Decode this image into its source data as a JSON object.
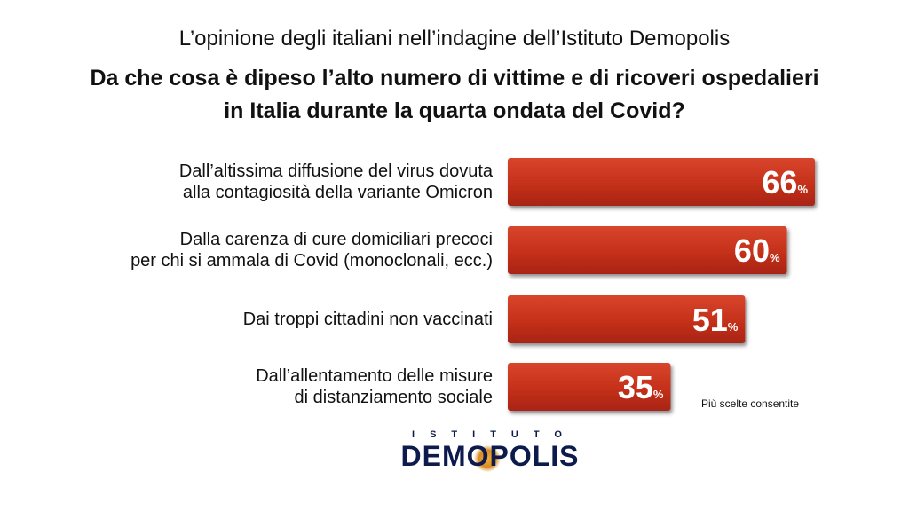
{
  "header": {
    "subtitle": "L’opinione degli italiani nell’indagine dell’Istituto Demopolis",
    "question_line1": "Da che cosa è dipeso l’alto numero di vittime e di ricoveri ospedalieri",
    "question_line2": "in Italia durante la quarta ondata del Covid?"
  },
  "chart_data": {
    "type": "bar",
    "orientation": "horizontal",
    "categories": [
      [
        "Dall’altissima diffusione del virus dovuta",
        "alla contagiosità della variante Omicron"
      ],
      [
        "Dalla carenza di cure domiciliari precoci",
        "per chi si ammala di Covid (monoclonali, ecc.)"
      ],
      [
        "Dai troppi cittadini non vaccinati"
      ],
      [
        "Dall’allentamento delle misure",
        "di distanziamento sociale"
      ]
    ],
    "values": [
      66,
      60,
      51,
      35
    ],
    "value_suffix": "%",
    "bar_color": "#c8321c",
    "xlim": [
      0,
      66
    ]
  },
  "note": "Più scelte consentite",
  "logo": {
    "top_text": "ISTITUTO",
    "main_text": "DEMOPOLIS",
    "color": "#0d1b4c"
  }
}
